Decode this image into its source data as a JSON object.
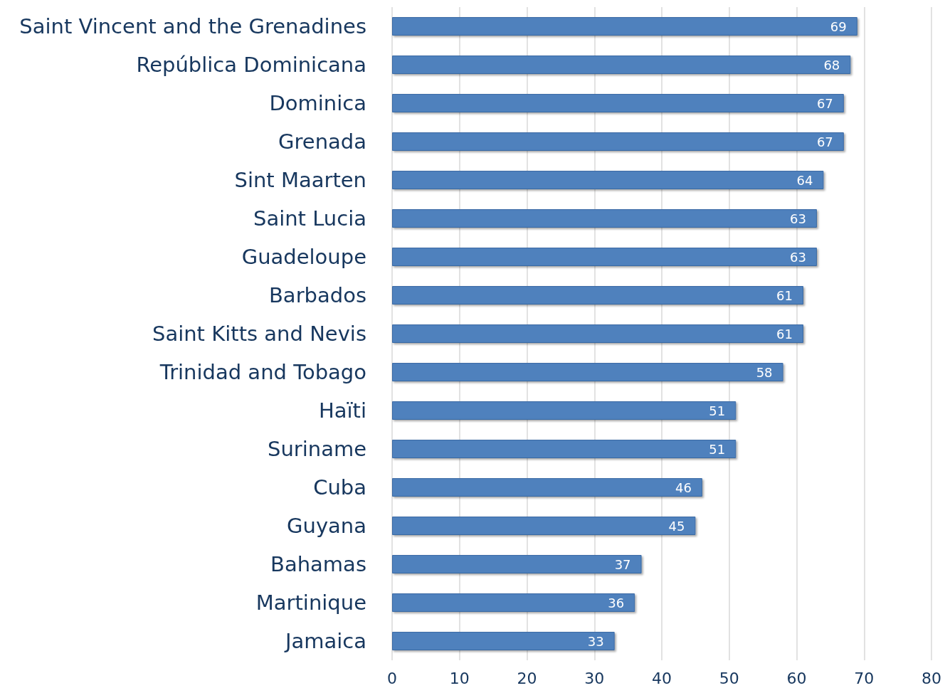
{
  "chart_data": {
    "type": "bar",
    "orientation": "horizontal",
    "categories": [
      "Saint Vincent and the Grenadines",
      "República Dominicana",
      "Dominica",
      "Grenada",
      "Sint Maarten",
      "Saint Lucia",
      "Guadeloupe",
      "Barbados",
      "Saint Kitts and Nevis",
      "Trinidad and Tobago",
      "Haïti",
      "Suriname",
      "Cuba",
      "Guyana",
      "Bahamas",
      "Martinique",
      "Jamaica"
    ],
    "values": [
      69,
      68,
      67,
      67,
      64,
      63,
      63,
      61,
      61,
      58,
      51,
      51,
      46,
      45,
      37,
      36,
      33
    ],
    "color": "#4f81bd",
    "xlim": [
      0,
      80
    ],
    "xticks": [
      0,
      10,
      20,
      30,
      40,
      50,
      60,
      70,
      80
    ],
    "grid": "x",
    "data_labels": true
  }
}
